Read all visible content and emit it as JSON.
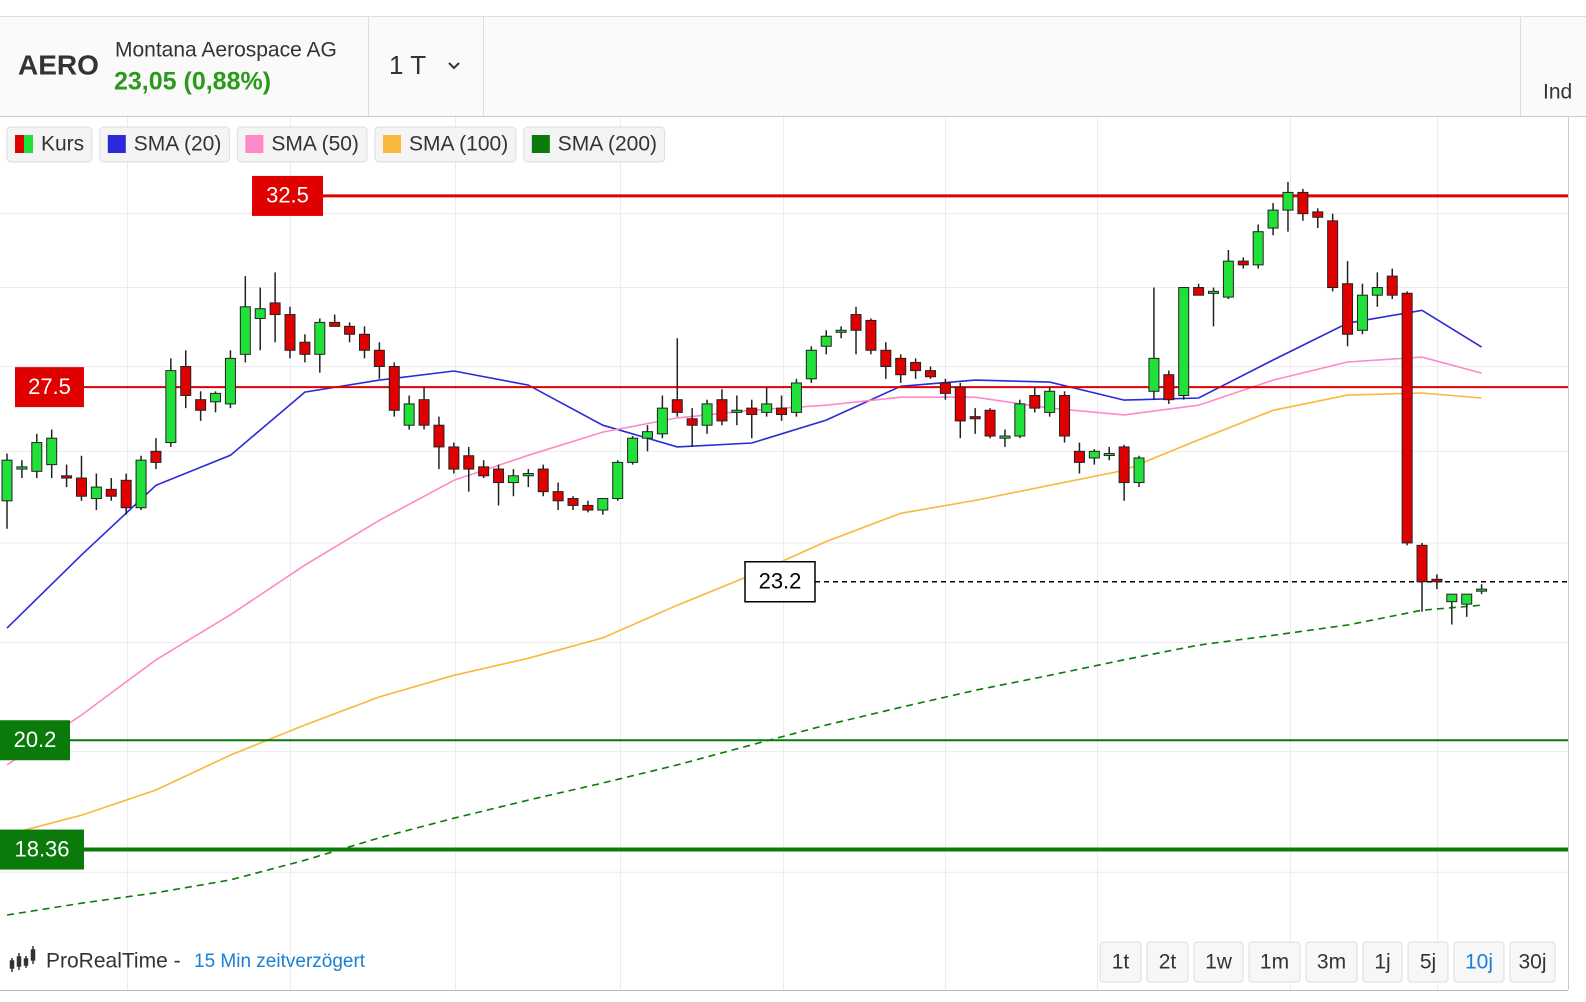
{
  "header": {
    "symbol": "AERO",
    "company": "Montana Aerospace AG",
    "quote": "23,05 (0,88%)",
    "interval": "1 T",
    "indicators": "Ind"
  },
  "chart_data": {
    "type": "candlestick",
    "log_scale": true,
    "grid": true,
    "xlim": [
      -0.47,
      104.8
    ],
    "ylim": [
      16.24,
      34.82
    ],
    "yticks": [
      18,
      20,
      22,
      24,
      26,
      28,
      30,
      32
    ],
    "series": [
      {
        "name": "Kurs",
        "type": "candlestick",
        "up_color": "#22e03a",
        "down_color": "#e00000",
        "ohlc": [
          [
            24.9,
            25.95,
            24.3,
            25.8
          ],
          [
            25.6,
            25.8,
            25.4,
            25.65
          ],
          [
            25.55,
            26.4,
            25.4,
            26.2
          ],
          [
            25.7,
            26.5,
            25.4,
            26.3
          ],
          [
            25.45,
            25.7,
            25.2,
            25.4
          ],
          [
            25.4,
            25.9,
            24.9,
            25.0
          ],
          [
            24.95,
            25.5,
            24.7,
            25.2
          ],
          [
            25.15,
            25.4,
            24.9,
            25.0
          ],
          [
            25.35,
            25.5,
            24.6,
            24.75
          ],
          [
            24.75,
            25.9,
            24.7,
            25.8
          ],
          [
            26.0,
            26.3,
            25.6,
            25.75
          ],
          [
            26.2,
            28.2,
            26.1,
            27.9
          ],
          [
            28.0,
            28.4,
            27.0,
            27.3
          ],
          [
            27.2,
            27.4,
            26.7,
            26.95
          ],
          [
            27.15,
            27.4,
            26.9,
            27.35
          ],
          [
            27.1,
            28.4,
            27.0,
            28.2
          ],
          [
            28.3,
            30.3,
            28.1,
            29.5
          ],
          [
            29.2,
            30.0,
            28.4,
            29.45
          ],
          [
            29.6,
            30.4,
            28.6,
            29.3
          ],
          [
            29.3,
            29.5,
            28.2,
            28.4
          ],
          [
            28.6,
            28.8,
            28.1,
            28.3
          ],
          [
            28.3,
            29.2,
            27.85,
            29.1
          ],
          [
            29.1,
            29.3,
            29.0,
            29.0
          ],
          [
            29.0,
            29.1,
            28.6,
            28.8
          ],
          [
            28.8,
            29.0,
            28.2,
            28.4
          ],
          [
            28.4,
            28.6,
            27.7,
            28.0
          ],
          [
            28.0,
            28.1,
            26.8,
            26.95
          ],
          [
            26.6,
            27.3,
            26.5,
            27.1
          ],
          [
            27.2,
            27.5,
            26.5,
            26.6
          ],
          [
            26.6,
            26.8,
            25.6,
            26.1
          ],
          [
            26.1,
            26.2,
            25.5,
            25.6
          ],
          [
            25.9,
            26.1,
            25.1,
            25.6
          ],
          [
            25.65,
            25.8,
            25.4,
            25.45
          ],
          [
            25.6,
            25.7,
            24.8,
            25.3
          ],
          [
            25.3,
            25.6,
            25.0,
            25.45
          ],
          [
            25.45,
            25.6,
            25.2,
            25.5
          ],
          [
            25.6,
            25.7,
            25.0,
            25.1
          ],
          [
            25.1,
            25.3,
            24.7,
            24.9
          ],
          [
            24.95,
            25.0,
            24.7,
            24.8
          ],
          [
            24.8,
            24.9,
            24.65,
            24.7
          ],
          [
            24.7,
            24.95,
            24.6,
            24.95
          ],
          [
            24.95,
            25.8,
            24.9,
            25.75
          ],
          [
            25.75,
            26.35,
            25.7,
            26.3
          ],
          [
            26.3,
            26.6,
            26.0,
            26.45
          ],
          [
            26.4,
            27.3,
            26.3,
            27.0
          ],
          [
            27.2,
            28.7,
            26.8,
            26.9
          ],
          [
            26.75,
            27.0,
            26.1,
            26.6
          ],
          [
            26.6,
            27.2,
            26.4,
            27.1
          ],
          [
            27.2,
            27.45,
            26.6,
            26.7
          ],
          [
            26.9,
            27.3,
            26.6,
            26.95
          ],
          [
            27.0,
            27.2,
            26.3,
            26.85
          ],
          [
            26.9,
            27.5,
            26.8,
            27.1
          ],
          [
            27.0,
            27.3,
            26.7,
            26.85
          ],
          [
            26.9,
            27.7,
            26.8,
            27.6
          ],
          [
            27.7,
            28.5,
            27.6,
            28.4
          ],
          [
            28.5,
            28.9,
            28.3,
            28.75
          ],
          [
            28.9,
            29.0,
            28.7,
            28.9
          ],
          [
            29.3,
            29.5,
            28.3,
            28.9
          ],
          [
            29.15,
            29.2,
            28.3,
            28.4
          ],
          [
            28.4,
            28.6,
            27.7,
            28.0
          ],
          [
            28.2,
            28.3,
            27.6,
            27.8
          ],
          [
            28.1,
            28.2,
            27.7,
            27.9
          ],
          [
            27.9,
            28.0,
            27.7,
            27.75
          ],
          [
            27.6,
            27.7,
            27.2,
            27.35
          ],
          [
            27.5,
            27.6,
            26.3,
            26.7
          ],
          [
            26.8,
            27.0,
            26.4,
            26.75
          ],
          [
            26.95,
            27.0,
            26.3,
            26.35
          ],
          [
            26.3,
            26.5,
            26.1,
            26.35
          ],
          [
            26.35,
            27.2,
            26.3,
            27.1
          ],
          [
            27.3,
            27.5,
            26.9,
            27.0
          ],
          [
            26.9,
            27.5,
            26.8,
            27.4
          ],
          [
            27.3,
            27.4,
            26.2,
            26.35
          ],
          [
            26.0,
            26.2,
            25.5,
            25.75
          ],
          [
            25.85,
            26.05,
            25.7,
            26.0
          ],
          [
            25.95,
            26.1,
            25.8,
            25.95
          ],
          [
            26.1,
            26.15,
            24.9,
            25.3
          ],
          [
            25.3,
            25.9,
            25.2,
            25.85
          ],
          [
            27.4,
            30.0,
            27.2,
            28.2
          ],
          [
            27.8,
            27.9,
            27.1,
            27.2
          ],
          [
            27.3,
            30.0,
            27.2,
            30.0
          ],
          [
            30.0,
            30.1,
            29.8,
            29.8
          ],
          [
            29.85,
            30.0,
            29.0,
            29.9
          ],
          [
            29.75,
            31.0,
            29.7,
            30.7
          ],
          [
            30.7,
            30.8,
            30.5,
            30.6
          ],
          [
            30.6,
            31.7,
            30.5,
            31.5
          ],
          [
            31.6,
            32.3,
            31.4,
            32.1
          ],
          [
            32.1,
            32.9,
            31.5,
            32.6
          ],
          [
            32.6,
            32.7,
            31.8,
            32.0
          ],
          [
            32.05,
            32.15,
            31.6,
            31.9
          ],
          [
            31.8,
            32.0,
            29.9,
            30.0
          ],
          [
            30.1,
            30.7,
            28.5,
            28.8
          ],
          [
            28.9,
            30.1,
            28.8,
            29.8
          ],
          [
            29.8,
            30.4,
            29.5,
            30.0
          ],
          [
            30.3,
            30.5,
            29.7,
            29.8
          ],
          [
            29.85,
            29.9,
            23.95,
            24.0
          ],
          [
            23.95,
            24.0,
            22.6,
            23.2
          ],
          [
            23.25,
            23.35,
            23.05,
            23.2
          ],
          [
            22.8,
            22.9,
            22.35,
            22.95
          ],
          [
            22.75,
            22.95,
            22.5,
            22.95
          ],
          [
            23.05,
            23.15,
            22.95,
            23.05
          ]
        ]
      },
      {
        "name": "SMA (20)",
        "type": "line",
        "color": "#2a2ad8",
        "x": [
          0,
          5,
          10,
          15,
          20,
          25,
          30,
          35,
          40,
          45,
          50,
          55,
          60,
          65,
          70,
          75,
          80,
          85,
          90,
          95,
          99
        ],
        "values": [
          22.28,
          23.75,
          25.24,
          25.91,
          27.38,
          27.67,
          27.89,
          27.55,
          26.6,
          26.1,
          26.19,
          26.72,
          27.52,
          27.67,
          27.62,
          27.19,
          27.24,
          28.16,
          29.08,
          29.41,
          28.48
        ]
      },
      {
        "name": "SMA (50)",
        "type": "line",
        "color": "#ff88c8",
        "x": [
          0,
          5,
          10,
          15,
          20,
          25,
          30,
          35,
          40,
          45,
          50,
          55,
          60,
          65,
          70,
          75,
          80,
          85,
          90,
          95,
          99
        ],
        "values": [
          19.77,
          20.65,
          21.67,
          22.54,
          23.54,
          24.48,
          25.35,
          25.91,
          26.44,
          26.77,
          26.95,
          27.07,
          27.26,
          27.26,
          27.0,
          26.84,
          27.07,
          27.67,
          28.11,
          28.23,
          27.84
        ]
      },
      {
        "name": "SMA (100)",
        "type": "line",
        "color": "#f8b83c",
        "x": [
          0,
          5,
          10,
          15,
          20,
          25,
          30,
          35,
          40,
          45,
          50,
          55,
          60,
          65,
          70,
          75,
          80,
          85,
          90,
          95,
          99
        ],
        "values": [
          18.6,
          18.92,
          19.34,
          19.94,
          20.47,
          20.98,
          21.38,
          21.7,
          22.09,
          22.73,
          23.34,
          24.03,
          24.63,
          24.91,
          25.24,
          25.57,
          26.26,
          26.95,
          27.31,
          27.36,
          27.24
        ]
      },
      {
        "name": "SMA (200)",
        "type": "line",
        "color": "#0a7a0a",
        "line_style": "dashed",
        "x": [
          0,
          5,
          10,
          15,
          20,
          25,
          30,
          35,
          40,
          45,
          50,
          55,
          60,
          65,
          70,
          75,
          80,
          85,
          90,
          95,
          99
        ],
        "values": [
          17.34,
          17.52,
          17.68,
          17.88,
          18.19,
          18.55,
          18.87,
          19.17,
          19.46,
          19.77,
          20.12,
          20.47,
          20.79,
          21.1,
          21.38,
          21.67,
          21.95,
          22.14,
          22.34,
          22.63,
          22.73
        ]
      }
    ],
    "levels": [
      {
        "value": 32.5,
        "color": "#e00000"
      },
      {
        "value": 27.5,
        "color": "#e00000"
      },
      {
        "value": 23.2,
        "color": "#000000",
        "line_style": "dashed"
      },
      {
        "value": 20.2,
        "color": "#0a7a0a"
      },
      {
        "value": 18.36,
        "color": "#0a7a0a"
      }
    ]
  },
  "footer": {
    "source": "ProRealTime -",
    "delay": "15 Min zeitverzögert",
    "periods": [
      "1t",
      "2t",
      "1w",
      "1m",
      "3m",
      "1j",
      "5j",
      "10j",
      "30j"
    ],
    "active_index": 7
  }
}
